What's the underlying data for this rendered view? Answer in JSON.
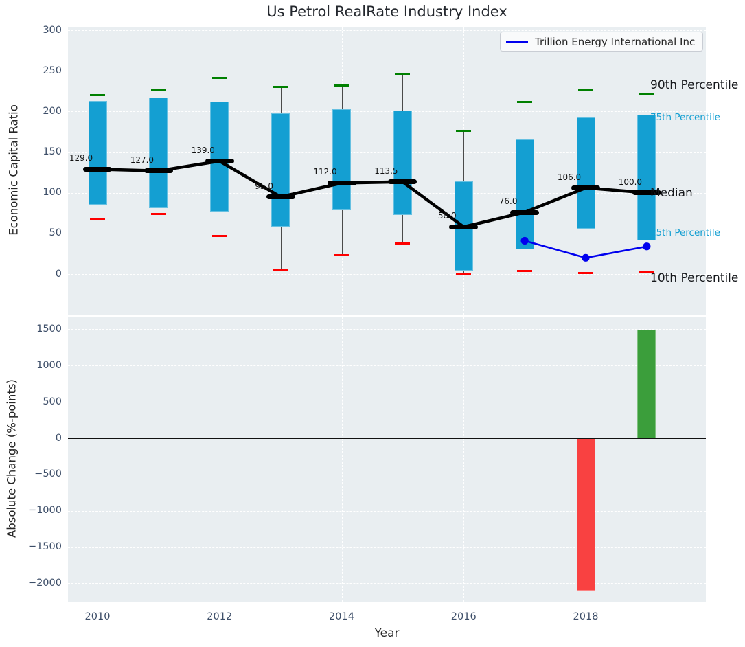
{
  "figure": {
    "title": "Us Petrol RealRate Industry Index"
  },
  "top_panel": {
    "ylabel": "Economic Capital Ratio",
    "legend_label": "Trillion Energy International Inc",
    "yticks": [
      {
        "v": 0,
        "label": "0"
      },
      {
        "v": 50,
        "label": "50"
      },
      {
        "v": 100,
        "label": "100"
      },
      {
        "v": 150,
        "label": "150"
      },
      {
        "v": 200,
        "label": "200"
      },
      {
        "v": 250,
        "label": "250"
      },
      {
        "v": 300,
        "label": "300"
      }
    ],
    "annotations": [
      {
        "text": "90th Percentile",
        "value": 232,
        "style": "black-large"
      },
      {
        "text": "75th Percentile",
        "value": 193,
        "style": "cyan-small"
      },
      {
        "text": "Median",
        "value": 100,
        "style": "black-large"
      },
      {
        "text": "25th Percentile",
        "value": 51,
        "style": "cyan-small"
      },
      {
        "text": "10th Percentile",
        "value": -5,
        "style": "black-large"
      }
    ]
  },
  "bottom_panel": {
    "ylabel": "Absolute Change (%-points)",
    "xlabel": "Year",
    "yticks": [
      {
        "v": -2000,
        "label": "−2000"
      },
      {
        "v": -1500,
        "label": "−1500"
      },
      {
        "v": -1000,
        "label": "−1000"
      },
      {
        "v": -500,
        "label": "−500"
      },
      {
        "v": 0,
        "label": "0"
      },
      {
        "v": 500,
        "label": "500"
      },
      {
        "v": 1000,
        "label": "1000"
      },
      {
        "v": 1500,
        "label": "1500"
      }
    ],
    "xticks": [
      {
        "v": 2010,
        "label": "2010"
      },
      {
        "v": 2012,
        "label": "2012"
      },
      {
        "v": 2014,
        "label": "2014"
      },
      {
        "v": 2016,
        "label": "2016"
      },
      {
        "v": 2018,
        "label": "2018"
      }
    ]
  },
  "colors": {
    "box_fill": "#149fd2",
    "cap_90th": "#008000",
    "cap_10th": "#fe0000",
    "median": "#000000",
    "company_line": "#0000ee",
    "positive_bar": "#3b9e3b",
    "negative_bar": "#f94141",
    "plot_background": "#e9eef1",
    "tick_text": "#3d4e68"
  },
  "chart_data": [
    {
      "type": "box",
      "panel": "top",
      "title": "Us Petrol RealRate Industry Index",
      "ylabel": "Economic Capital Ratio",
      "ylim": [
        -50,
        303
      ],
      "grid": true,
      "legend_position": "upper right",
      "x": [
        2010,
        2011,
        2012,
        2013,
        2014,
        2015,
        2016,
        2017,
        2018,
        2019
      ],
      "series": [
        {
          "name": "90th Percentile",
          "values": [
            220,
            227,
            241,
            230,
            232,
            246,
            176,
            212,
            227,
            222
          ]
        },
        {
          "name": "75th Percentile",
          "values": [
            213,
            217,
            212,
            198,
            203,
            201,
            114,
            166,
            193,
            196
          ]
        },
        {
          "name": "Median",
          "values": [
            129,
            127,
            139,
            95,
            112,
            113.5,
            58,
            76,
            106,
            100
          ]
        },
        {
          "name": "25th Percentile",
          "values": [
            85,
            81,
            77,
            58,
            79,
            73,
            4,
            30,
            56,
            41
          ]
        },
        {
          "name": "10th Percentile",
          "values": [
            68,
            74,
            47,
            5,
            23,
            38,
            0,
            4,
            1,
            2
          ]
        }
      ],
      "median_labels": [
        "129.0",
        "127.0",
        "139.0",
        "95.0",
        "112.0",
        "113.5",
        "58.0",
        "76.0",
        "106.0",
        "100.0"
      ],
      "company_series": {
        "name": "Trillion Energy International Inc",
        "x": [
          2017,
          2018,
          2019
        ],
        "values": [
          41,
          20,
          34
        ]
      }
    },
    {
      "type": "bar",
      "panel": "bottom",
      "ylabel": "Absolute Change (%-points)",
      "xlabel": "Year",
      "ylim": [
        -2250,
        1700
      ],
      "grid": true,
      "x": [
        2018,
        2019
      ],
      "values": [
        -2100,
        1490
      ],
      "bar_colors": [
        "#f94141",
        "#3b9e3b"
      ]
    }
  ]
}
